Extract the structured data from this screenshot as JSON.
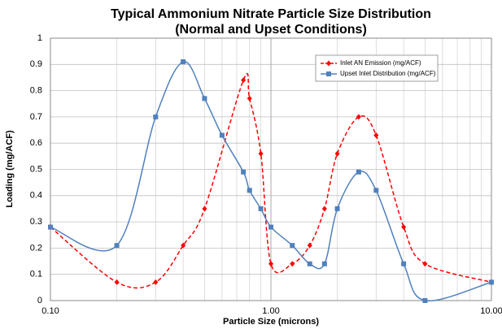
{
  "chart_data": {
    "type": "line",
    "title": "Typical Ammonium Nitrate Particle Size Distribution",
    "subtitle": "(Normal and Upset Conditions)",
    "x_label": "Particle Size (microns)",
    "y_label": "Loading (mg/ACF)",
    "xscale": "log",
    "xlim": [
      0.1,
      10
    ],
    "xticks": [
      {
        "value": 0.1,
        "label": "0.10"
      },
      {
        "value": 1,
        "label": "1.00"
      },
      {
        "value": 10,
        "label": "10.00"
      }
    ],
    "ylim": [
      0,
      1
    ],
    "yticks": [
      0,
      0.1,
      0.2,
      0.3,
      0.4,
      0.5,
      0.6,
      0.7,
      0.8,
      0.9,
      1
    ],
    "grid": true,
    "legend": "upper right",
    "series": [
      {
        "name": "Inlet AN Emission (mg/ACF)",
        "color": "#ff0000",
        "dashed": true,
        "marker": "diamond",
        "x": [
          0.1,
          0.2,
          0.3,
          0.4,
          0.5,
          0.75,
          0.8,
          0.9,
          1.0,
          1.25,
          1.5,
          1.75,
          2,
          2.5,
          3,
          4,
          5,
          10
        ],
        "values": [
          0.28,
          0.07,
          0.07,
          0.21,
          0.35,
          0.84,
          0.77,
          0.56,
          0.14,
          0.14,
          0.21,
          0.35,
          0.56,
          0.7,
          0.63,
          0.28,
          0.14,
          0.07
        ]
      },
      {
        "name": "Upset Inlet Distribution (mg/ACF)",
        "color": "#4f81bd",
        "dashed": false,
        "marker": "square",
        "x": [
          0.1,
          0.2,
          0.3,
          0.4,
          0.5,
          0.6,
          0.75,
          0.8,
          0.9,
          1.0,
          1.25,
          1.5,
          1.75,
          2,
          2.5,
          3,
          4,
          5,
          10
        ],
        "values": [
          0.28,
          0.21,
          0.7,
          0.91,
          0.77,
          0.63,
          0.49,
          0.42,
          0.35,
          0.28,
          0.21,
          0.14,
          0.14,
          0.35,
          0.49,
          0.42,
          0.14,
          0.0,
          0.07
        ]
      }
    ]
  }
}
